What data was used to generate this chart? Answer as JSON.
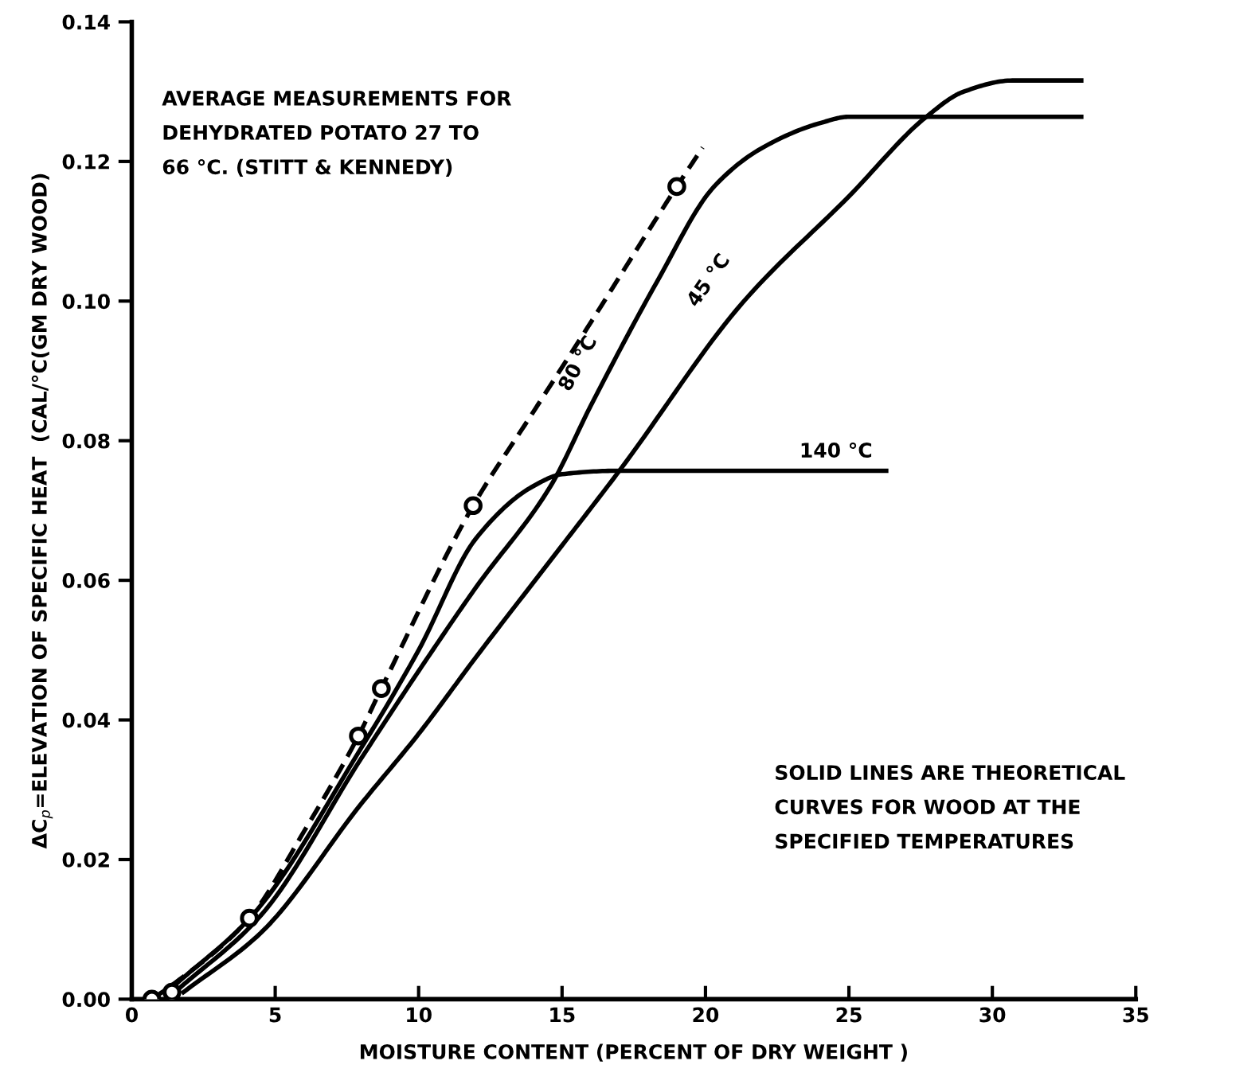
{
  "chart_data": {
    "type": "line",
    "xlabel": "MOISTURE CONTENT (PERCENT OF DRY WEIGHT )",
    "ylabel": "ΔC$_{p}$=ELEVATION OF SPECIFIC HEAT  (CAL/°C(GM DRY WOOD)",
    "xlim": [
      0,
      35
    ],
    "xticks": [
      0,
      5,
      10,
      15,
      20,
      25,
      30,
      35
    ],
    "ylim": [
      0,
      0.14
    ],
    "yticks": [
      {
        "value": 0,
        "label": "0.00"
      },
      {
        "value": 0.02,
        "label": "0.02"
      },
      {
        "value": 0.04,
        "label": "0.04"
      },
      {
        "value": 0.06,
        "label": "0.06"
      },
      {
        "value": 0.08,
        "label": "0.08"
      },
      {
        "value": 0.1,
        "label": "0.10"
      },
      {
        "value": 0.12,
        "label": "0.12"
      },
      {
        "value": 0.14,
        "label": "0.14"
      }
    ],
    "grid": false,
    "legend": false,
    "series": [
      {
        "line_style": "dashed",
        "color": "#000000",
        "x": [
          0.7,
          1.4,
          4.1,
          6.0,
          7.9,
          8.7,
          11.9,
          13.9,
          15.7,
          19.0,
          19.9
        ],
        "values": [
          0.0,
          0.002,
          0.0116,
          0.024,
          0.0377,
          0.0445,
          0.0707,
          0.0835,
          0.095,
          0.1164,
          0.122
        ]
      },
      {
        "type": "scatter",
        "marker": "circle",
        "color": "#000000",
        "x": [
          0.7,
          1.4,
          4.1,
          7.9,
          8.7,
          11.9,
          19.0
        ],
        "values": [
          0.0,
          0.001,
          0.0116,
          0.0377,
          0.0445,
          0.0707,
          0.1164
        ]
      },
      {
        "line_style": "solid",
        "color": "#000000",
        "x": [
          1.5,
          4.2,
          8.0,
          10.0,
          12.0,
          14.0,
          15.0,
          17.0,
          26.3
        ],
        "values": [
          0.002,
          0.012,
          0.036,
          0.05,
          0.066,
          0.0735,
          0.0752,
          0.0757,
          0.0757
        ]
      },
      {
        "line_style": "solid",
        "color": "#000000",
        "x": [
          1.5,
          4.5,
          8.0,
          10.0,
          12.0,
          14.6,
          16.0,
          18.3,
          20.3,
          22.0,
          24.0,
          25.0,
          33.1
        ],
        "values": [
          0.001,
          0.012,
          0.0345,
          0.047,
          0.059,
          0.0735,
          0.085,
          0.1027,
          0.1164,
          0.122,
          0.1255,
          0.1264,
          0.1264
        ]
      },
      {
        "line_style": "solid",
        "color": "#000000",
        "x": [
          1.8,
          4.5,
          8.0,
          10.0,
          12.0,
          15.0,
          17.0,
          21.3,
          25.0,
          27.7,
          29.0,
          30.7,
          33.1
        ],
        "values": [
          0.001,
          0.0095,
          0.028,
          0.038,
          0.049,
          0.065,
          0.0757,
          0.0998,
          0.115,
          0.1264,
          0.13,
          0.1316,
          0.1316
        ]
      }
    ],
    "annotations": [
      "AVERAGE MEASUREMENTS FOR\nDEHYDRATED POTATO 27 TO\n66 °C. (STITT & KENNEDY)",
      "SOLID LINES ARE THEORETICAL\nCURVES FOR WOOD AT THE\nSPECIFIED TEMPERATURES",
      "80 °C",
      "45 °C",
      "140 °C"
    ]
  }
}
